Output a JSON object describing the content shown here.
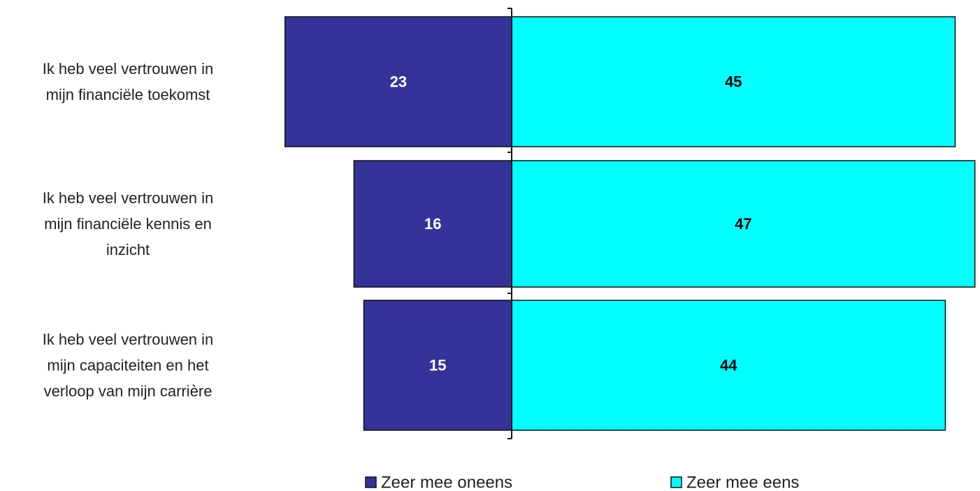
{
  "chart_data": {
    "type": "bar",
    "orientation": "horizontal",
    "stacking": "diverging",
    "categories": [
      [
        "Ik heb  veel vertrouwen in",
        "mijn financiële toekomst"
      ],
      [
        "Ik heb  veel vertrouwen in",
        "mijn financiële kennis en",
        "inzicht"
      ],
      [
        "Ik heb  veel vertrouwen in",
        "mijn capaciteiten en het",
        "verloop  van mijn carrière"
      ]
    ],
    "series": [
      {
        "name": "Zeer mee oneens",
        "values": [
          23,
          16,
          15
        ],
        "color": "#333399",
        "label_color": "#ffffff"
      },
      {
        "name": "Zeer mee eens",
        "values": [
          45,
          47,
          44
        ],
        "color": "#00ffff",
        "label_color": "#000000"
      }
    ],
    "grid": false,
    "legend": "bottom"
  }
}
